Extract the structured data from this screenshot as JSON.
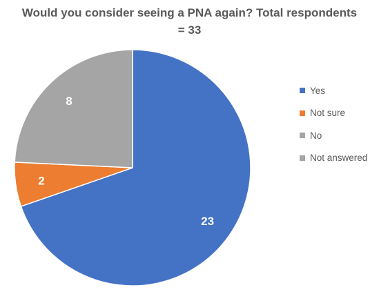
{
  "chart_data": {
    "type": "pie",
    "title": "Would you consider seeing a PNA again? Total respondents = 33",
    "title_lines": [
      "Would you consider seeing a PNA again? Total respondents",
      "= 33"
    ],
    "slices": [
      {
        "label": "Yes",
        "value": 23,
        "data_label": "23",
        "color": "#4472C4"
      },
      {
        "label": "Not sure",
        "value": 2,
        "data_label": "2",
        "color": "#ED7D31"
      },
      {
        "label": "No",
        "value": 0,
        "data_label": "",
        "color": "#A5A5A5"
      },
      {
        "label": "Not answered",
        "value": 8,
        "data_label": "8",
        "color": "#A5A5A5"
      }
    ],
    "legend": {
      "position": "right",
      "entries": [
        {
          "label": "Yes",
          "color": "#4472C4"
        },
        {
          "label": "Not sure",
          "color": "#ED7D31"
        },
        {
          "label": "No",
          "color": "#A5A5A5"
        },
        {
          "label": "Not answered",
          "color": "#A5A5A5"
        }
      ]
    }
  }
}
